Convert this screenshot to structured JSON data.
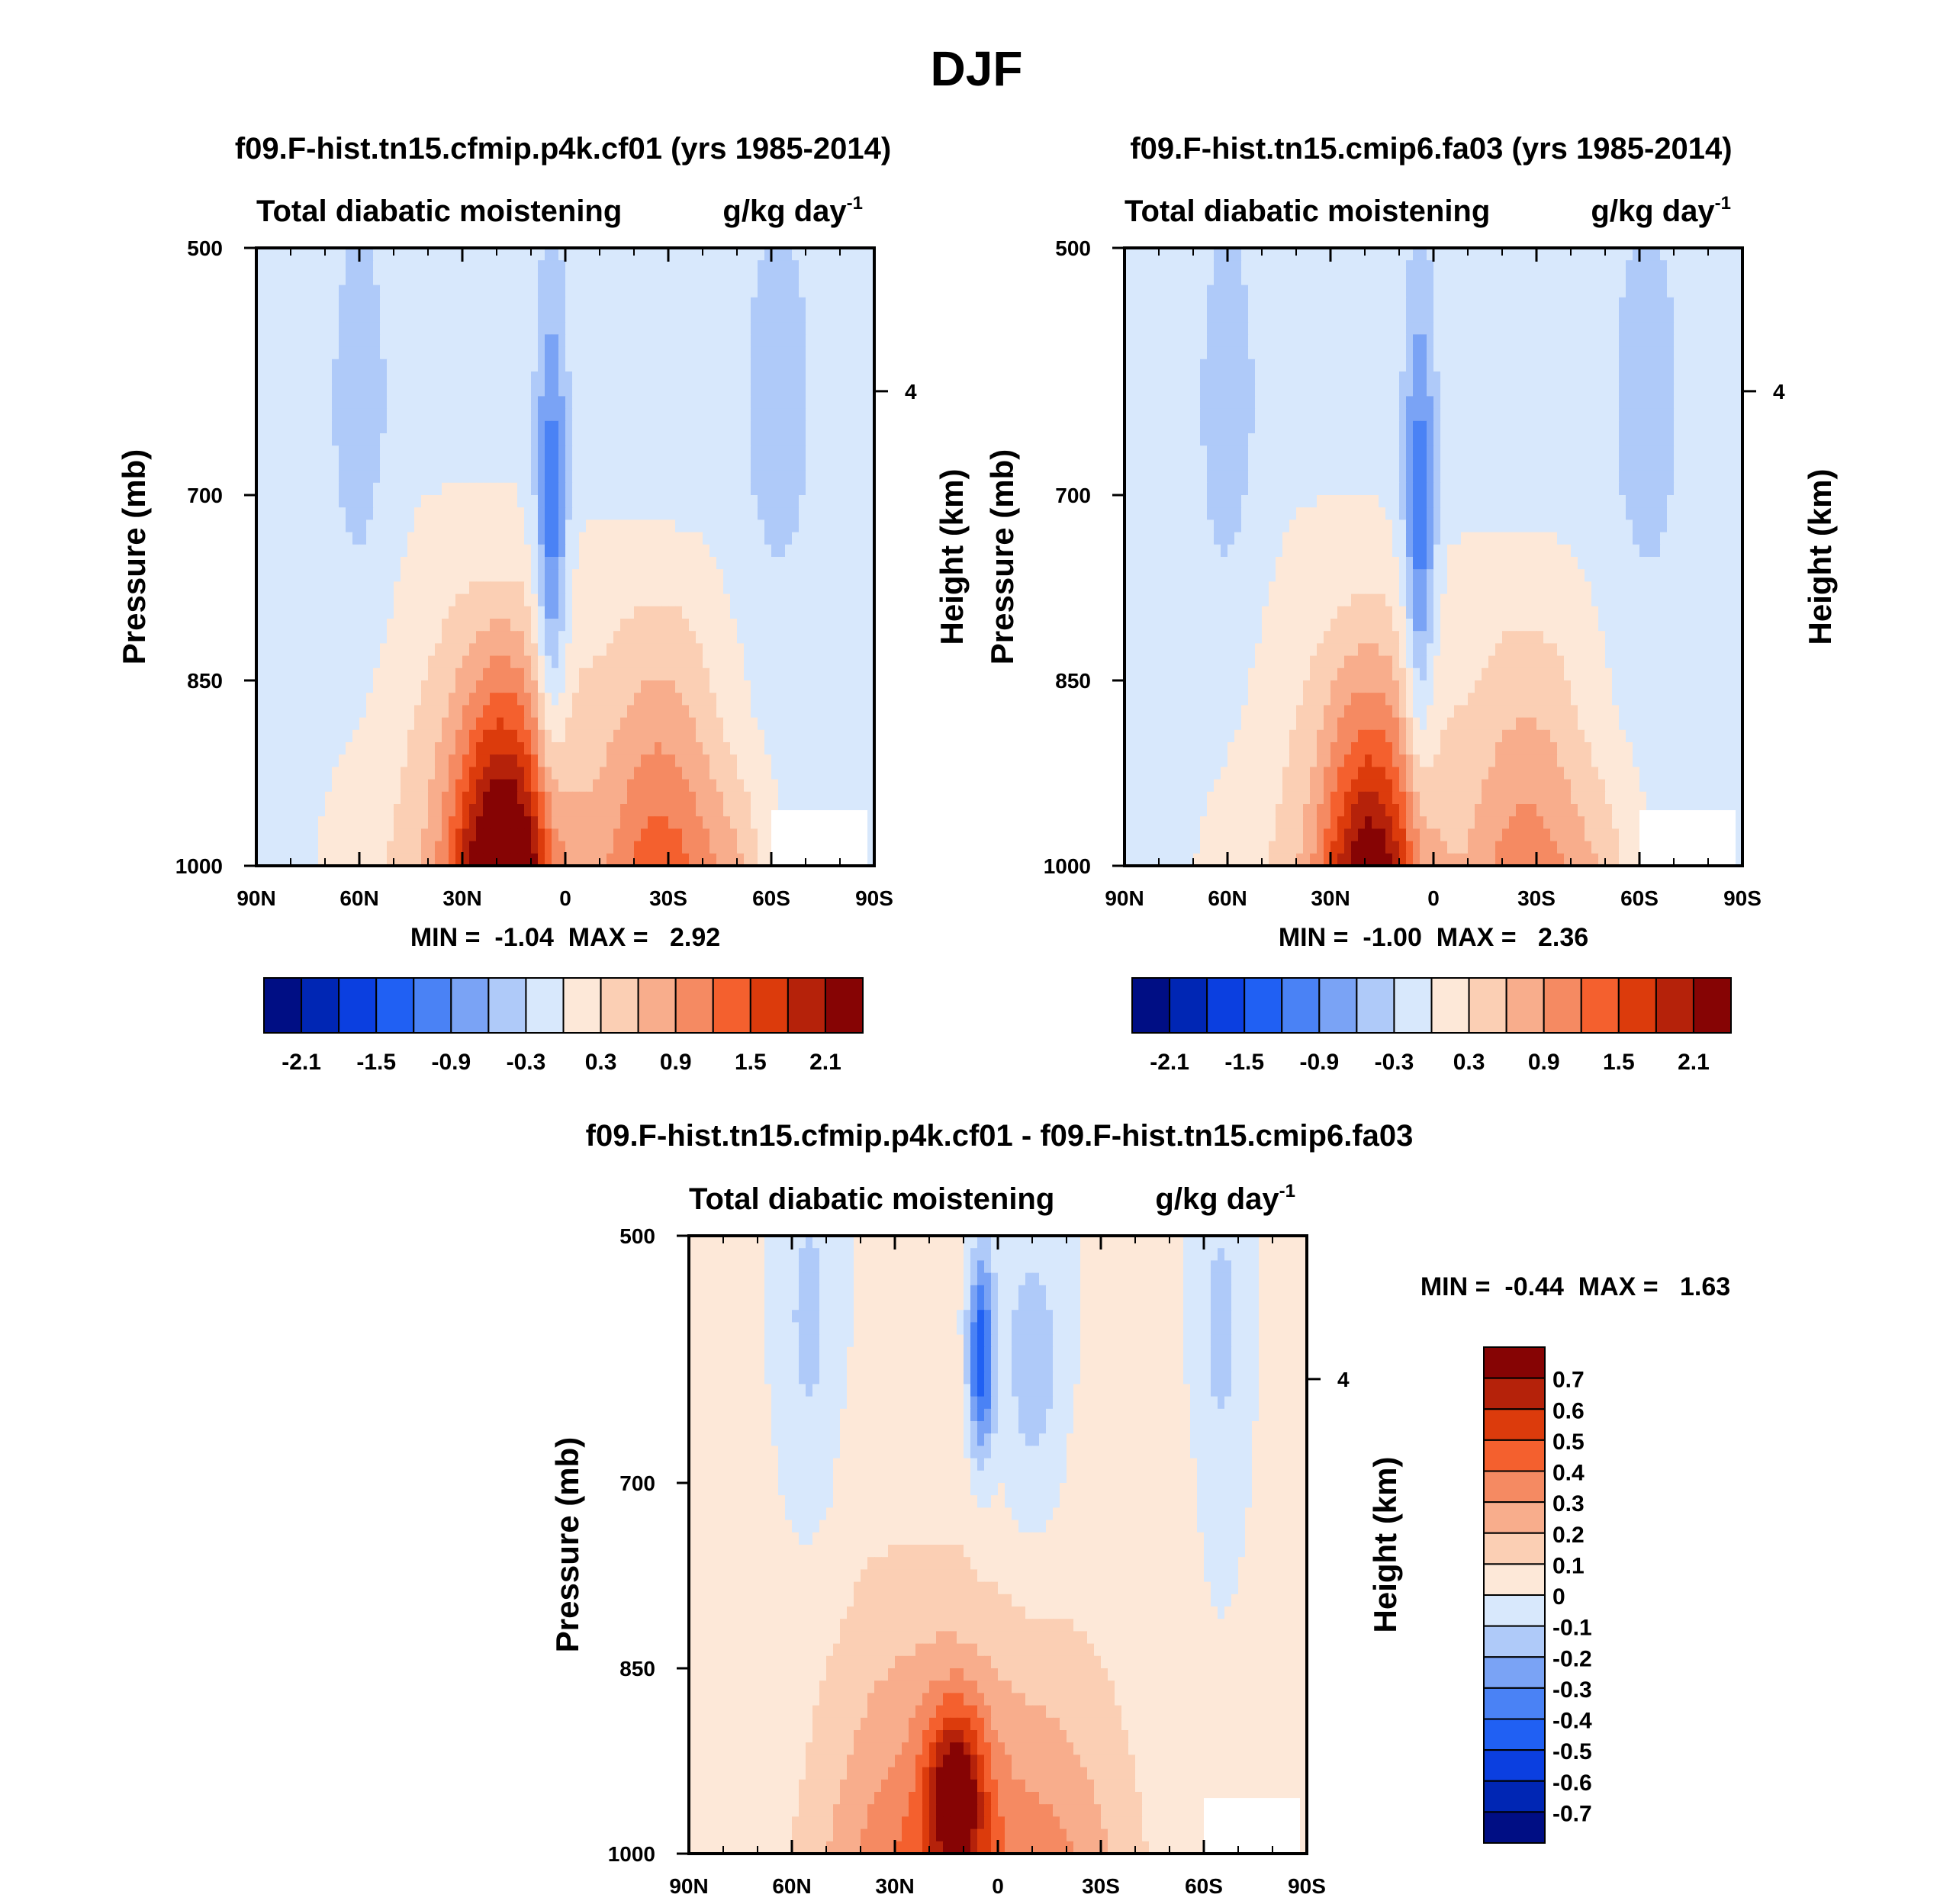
{
  "figure": {
    "title": "DJF"
  },
  "chart_data": [
    {
      "type": "heatmap",
      "title": "f09.F-hist.tn15.cfmip.p4k.cf01 (yrs 1985-2014)",
      "subtitle_left": "Total diabatic moistening",
      "units": "g/kg day",
      "units_exp": "-1",
      "xlabel": "",
      "ylabel": "Pressure (mb)",
      "ylabel_right": "Height (km)",
      "x_ticks": [
        "90N",
        "60N",
        "30N",
        "0",
        "30S",
        "60S",
        "90S"
      ],
      "x_tick_values": [
        90,
        60,
        30,
        0,
        -30,
        -60,
        -90
      ],
      "y_ticks": [
        "500",
        "700",
        "850",
        "1000"
      ],
      "y_tick_values": [
        500,
        700,
        850,
        1000
      ],
      "right_ticks": [
        "4"
      ],
      "right_tick_pressure": [
        616
      ],
      "xlim": [
        90,
        -90
      ],
      "ylim": [
        500,
        1000
      ],
      "min_label": "MIN =  -1.04  MAX =   2.92",
      "min": -1.04,
      "max": 2.92,
      "scale": 1.0,
      "colorbar": {
        "orientation": "horizontal",
        "levels": [
          -2.4,
          -2.1,
          -1.8,
          -1.5,
          -1.2,
          -0.9,
          -0.6,
          -0.3,
          0,
          0.3,
          0.6,
          0.9,
          1.2,
          1.5,
          1.8,
          2.1,
          2.4
        ],
        "tick_labels": [
          "-2.1",
          "-1.5",
          "-0.9",
          "-0.3",
          "0.3",
          "0.9",
          "1.5",
          "2.1"
        ]
      }
    },
    {
      "type": "heatmap",
      "title": "f09.F-hist.tn15.cmip6.fa03 (yrs 1985-2014)",
      "subtitle_left": "Total diabatic moistening",
      "units": "g/kg day",
      "units_exp": "-1",
      "xlabel": "",
      "ylabel": "Pressure (mb)",
      "ylabel_right": "Height (km)",
      "x_ticks": [
        "90N",
        "60N",
        "30N",
        "0",
        "30S",
        "60S",
        "90S"
      ],
      "x_tick_values": [
        90,
        60,
        30,
        0,
        -30,
        -60,
        -90
      ],
      "y_ticks": [
        "500",
        "700",
        "850",
        "1000"
      ],
      "y_tick_values": [
        500,
        700,
        850,
        1000
      ],
      "right_ticks": [
        "4"
      ],
      "right_tick_pressure": [
        616
      ],
      "xlim": [
        90,
        -90
      ],
      "ylim": [
        500,
        1000
      ],
      "min_label": "MIN =  -1.00  MAX =   2.36",
      "min": -1.0,
      "max": 2.36,
      "scale": 0.8,
      "colorbar": {
        "orientation": "horizontal",
        "levels": [
          -2.4,
          -2.1,
          -1.8,
          -1.5,
          -1.2,
          -0.9,
          -0.6,
          -0.3,
          0,
          0.3,
          0.6,
          0.9,
          1.2,
          1.5,
          1.8,
          2.1,
          2.4
        ],
        "tick_labels": [
          "-2.1",
          "-1.5",
          "-0.9",
          "-0.3",
          "0.3",
          "0.9",
          "1.5",
          "2.1"
        ]
      }
    },
    {
      "type": "heatmap",
      "title": "f09.F-hist.tn15.cfmip.p4k.cf01 - f09.F-hist.tn15.cmip6.fa03",
      "subtitle_left": "Total diabatic moistening",
      "units": "g/kg day",
      "units_exp": "-1",
      "xlabel": "",
      "ylabel": "Pressure (mb)",
      "ylabel_right": "Height (km)",
      "x_ticks": [
        "90N",
        "60N",
        "30N",
        "0",
        "30S",
        "60S",
        "90S"
      ],
      "x_tick_values": [
        90,
        60,
        30,
        0,
        -30,
        -60,
        -90
      ],
      "y_ticks": [
        "500",
        "700",
        "850",
        "1000"
      ],
      "y_tick_values": [
        500,
        700,
        850,
        1000
      ],
      "right_ticks": [
        "4"
      ],
      "right_tick_pressure": [
        616
      ],
      "xlim": [
        90,
        -90
      ],
      "ylim": [
        500,
        1000
      ],
      "min_label": "MIN =  -0.44  MAX =   1.63",
      "min": -0.44,
      "max": 1.63,
      "colorbar": {
        "orientation": "vertical",
        "levels": [
          -0.8,
          -0.7,
          -0.6,
          -0.5,
          -0.4,
          -0.3,
          -0.2,
          -0.1,
          0,
          0.1,
          0.2,
          0.3,
          0.4,
          0.5,
          0.6,
          0.7,
          0.8
        ],
        "tick_labels": [
          "0.7",
          "0.6",
          "0.5",
          "0.4",
          "0.3",
          "0.2",
          "0.1",
          "0",
          "-0.1",
          "-0.2",
          "-0.3",
          "-0.4",
          "-0.5",
          "-0.6",
          "-0.7"
        ]
      }
    }
  ],
  "palette": [
    "#000e84",
    "#0026b4",
    "#0b3fe0",
    "#2060f3",
    "#4a82f5",
    "#7aa3f5",
    "#afcaf9",
    "#d8e8fc",
    "#fde8d8",
    "#fbcfb4",
    "#f8ad8c",
    "#f58a62",
    "#f4602e",
    "#dc3b0c",
    "#b5220a",
    "#860404"
  ]
}
